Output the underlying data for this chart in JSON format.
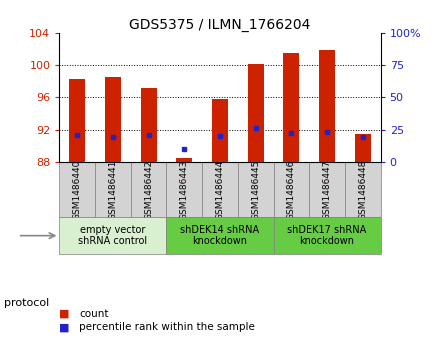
{
  "title": "GDS5375 / ILMN_1766204",
  "samples": [
    "GSM1486440",
    "GSM1486441",
    "GSM1486442",
    "GSM1486443",
    "GSM1486444",
    "GSM1486445",
    "GSM1486446",
    "GSM1486447",
    "GSM1486448"
  ],
  "count_values": [
    98.3,
    98.5,
    97.2,
    88.5,
    95.8,
    100.1,
    101.5,
    101.9,
    91.5
  ],
  "percentile_values": [
    21,
    19,
    21,
    10,
    20,
    26,
    22,
    23,
    19
  ],
  "ylim_left": [
    88,
    104
  ],
  "ylim_right": [
    0,
    100
  ],
  "yticks_left": [
    88,
    92,
    96,
    100,
    104
  ],
  "yticks_right": [
    0,
    25,
    50,
    75,
    100
  ],
  "ytick_labels_right": [
    "0",
    "25",
    "50",
    "75",
    "100%"
  ],
  "bar_bottom": 88,
  "bar_color": "#cc2200",
  "dot_color": "#2222cc",
  "protocol_groups": [
    {
      "label": "empty vector\nshRNA control",
      "start": 0,
      "end": 3,
      "color": "#d8f0d0"
    },
    {
      "label": "shDEK14 shRNA\nknockdown",
      "start": 3,
      "end": 6,
      "color": "#66cc44"
    },
    {
      "label": "shDEK17 shRNA\nknockdown",
      "start": 6,
      "end": 9,
      "color": "#66cc44"
    }
  ],
  "protocol_label": "protocol",
  "legend_count_label": "count",
  "legend_pct_label": "percentile rank within the sample",
  "bar_width": 0.45,
  "tick_color_left": "#cc2200",
  "tick_color_right": "#2222cc",
  "xtick_bg_color": "#d3d3d3",
  "gridline_ticks": [
    92,
    96,
    100
  ]
}
